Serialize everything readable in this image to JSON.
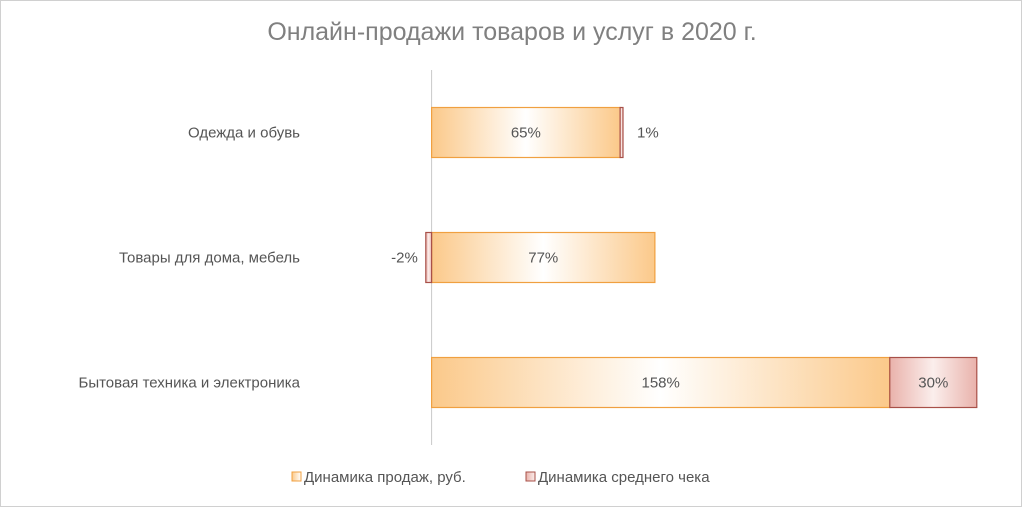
{
  "chart_data": {
    "type": "bar",
    "orientation": "horizontal",
    "stacked": true,
    "title": "Онлайн-продажи  товаров  и  услуг  в 2020  г.",
    "categories": [
      "Одежда и обувь",
      "Товары для дома, мебель",
      "Бытовая техника и электроника"
    ],
    "series": [
      {
        "name": "Динамика продаж, руб.",
        "values": [
          65,
          77,
          158
        ],
        "labels": [
          "65%",
          "77%",
          "158%"
        ],
        "color": "#f5a623"
      },
      {
        "name": "Динамика среднего чека",
        "values": [
          1,
          -2,
          30
        ],
        "labels": [
          "1%",
          "-2%",
          "30%"
        ],
        "color": "#b5524a"
      }
    ],
    "unit": "%",
    "xlim": [
      -4,
      196
    ],
    "grid": false,
    "legend": "bottom"
  }
}
